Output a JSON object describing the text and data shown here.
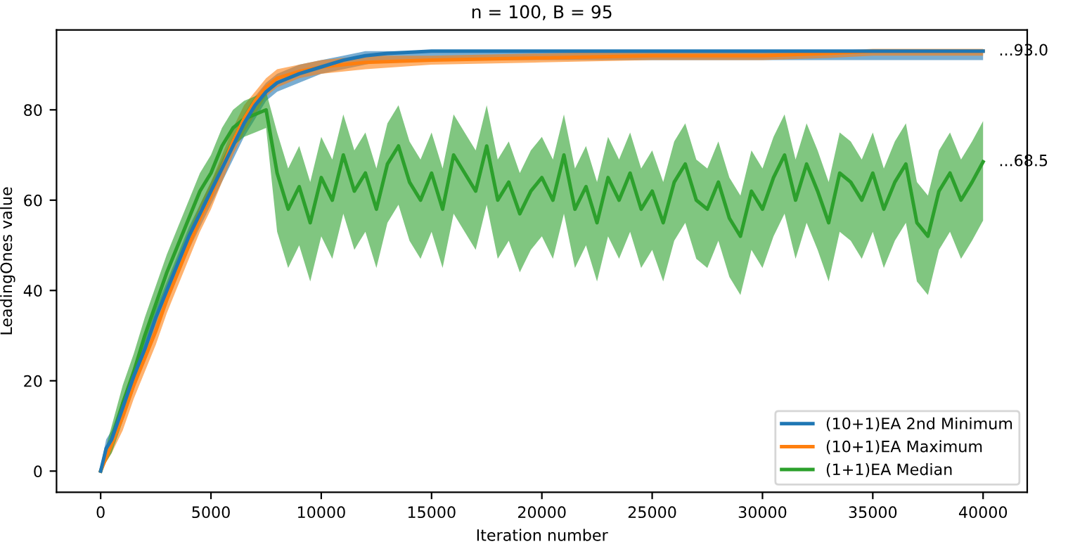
{
  "chart_data": {
    "type": "line",
    "title": "n = 100, B = 95",
    "xlabel": "Iteration number",
    "ylabel": "LeadingOnes value",
    "xlim": [
      -2000,
      42000
    ],
    "ylim": [
      -4.7,
      97.7
    ],
    "xticks": [
      0,
      5000,
      10000,
      15000,
      20000,
      25000,
      30000,
      35000,
      40000
    ],
    "yticks": [
      0,
      20,
      40,
      60,
      80
    ],
    "grid": false,
    "legend": "bottom right",
    "marker": "none",
    "line_style": "solid",
    "annotations": [
      {
        "text": "...93.0",
        "x": 40000,
        "y": 93
      },
      {
        "text": "...68.5",
        "x": 40000,
        "y": 68.5
      }
    ],
    "series": [
      {
        "name": "(10+1)EA 2nd Minimum",
        "color": "#1f77b4",
        "x": [
          0,
          250,
          500,
          1000,
          1500,
          2000,
          2500,
          3000,
          3500,
          4000,
          4500,
          5000,
          5500,
          6000,
          6500,
          7000,
          7500,
          8000,
          9000,
          10000,
          11000,
          12000,
          13000,
          15000,
          20000,
          25000,
          30000,
          35000,
          40000
        ],
        "values": [
          0,
          5,
          7,
          14,
          21,
          27,
          34,
          40,
          46,
          52,
          57,
          62,
          67,
          72,
          77,
          81,
          84,
          86,
          88,
          89.5,
          91,
          92,
          92.5,
          93,
          93,
          93,
          93,
          93,
          93
        ],
        "lower": [
          0,
          3,
          5,
          12,
          19,
          25,
          31,
          37,
          43,
          49,
          54,
          59,
          64,
          69,
          74,
          78,
          82,
          84,
          86,
          88,
          89,
          90,
          91,
          91,
          91,
          91,
          91,
          91,
          91
        ],
        "upper": [
          1,
          7,
          9,
          16,
          23,
          29,
          36,
          42,
          48,
          54,
          59,
          64,
          69,
          74,
          79,
          83,
          86,
          88,
          90,
          91,
          92,
          93,
          93,
          93,
          93,
          93,
          93,
          93,
          93
        ]
      },
      {
        "name": "(10+1)EA Maximum",
        "color": "#ff7f0e",
        "x": [
          0,
          500,
          1000,
          1500,
          2000,
          2500,
          3000,
          3500,
          4000,
          4500,
          5000,
          5500,
          6000,
          6500,
          7000,
          7500,
          8000,
          9000,
          10000,
          12000,
          15000,
          20000,
          25000,
          30000,
          33000,
          35000,
          40000
        ],
        "values": [
          0,
          6,
          12,
          19,
          25,
          31,
          38,
          44,
          50,
          56,
          61,
          67,
          73,
          78,
          82,
          85,
          87,
          88.5,
          89.5,
          90.5,
          91,
          91.5,
          92,
          92,
          92.5,
          93,
          93
        ],
        "lower": [
          0,
          4,
          9,
          16,
          22,
          28,
          35,
          41,
          47,
          53,
          58,
          64,
          70,
          75,
          79,
          83,
          85,
          87,
          88,
          89,
          90,
          90.5,
          91,
          91,
          91.5,
          92,
          92
        ],
        "upper": [
          1,
          8,
          15,
          22,
          28,
          34,
          41,
          47,
          53,
          59,
          64,
          70,
          76,
          81,
          84,
          87,
          89,
          90,
          91,
          92,
          92,
          92.5,
          93,
          93,
          93,
          93.5,
          93.5
        ]
      },
      {
        "name": "(1+1)EA Median",
        "color": "#2ca02c",
        "x": [
          0,
          500,
          1000,
          1500,
          2000,
          2500,
          3000,
          3500,
          4000,
          4500,
          5000,
          5500,
          6000,
          6500,
          7000,
          7500,
          8000,
          8500,
          9000,
          9500,
          10000,
          10500,
          11000,
          11500,
          12000,
          12500,
          13000,
          13500,
          14000,
          14500,
          15000,
          15500,
          16000,
          16500,
          17000,
          17500,
          18000,
          18500,
          19000,
          19500,
          20000,
          20500,
          21000,
          21500,
          22000,
          22500,
          23000,
          23500,
          24000,
          24500,
          25000,
          25500,
          26000,
          26500,
          27000,
          27500,
          28000,
          28500,
          29000,
          29500,
          30000,
          30500,
          31000,
          31500,
          32000,
          32500,
          33000,
          33500,
          34000,
          34500,
          35000,
          35500,
          36000,
          36500,
          37000,
          37500,
          38000,
          38500,
          39000,
          39500,
          40000
        ],
        "values": [
          0,
          7,
          15,
          22,
          30,
          37,
          44,
          50,
          56,
          62,
          66,
          72,
          76,
          78,
          79,
          80,
          66,
          58,
          63,
          55,
          65,
          60,
          70,
          62,
          66,
          58,
          68,
          72,
          64,
          60,
          66,
          58,
          70,
          66,
          62,
          72,
          60,
          64,
          57,
          62,
          65,
          60,
          70,
          58,
          63,
          55,
          65,
          60,
          66,
          58,
          62,
          55,
          64,
          68,
          60,
          58,
          64,
          56,
          52,
          62,
          58,
          65,
          70,
          60,
          68,
          62,
          55,
          66,
          64,
          60,
          66,
          58,
          64,
          68,
          55,
          52,
          62,
          66,
          60,
          64,
          68.5
        ],
        "lower": [
          0,
          4,
          11,
          18,
          26,
          33,
          40,
          46,
          52,
          58,
          62,
          68,
          72,
          74,
          75,
          76,
          53,
          45,
          50,
          42,
          52,
          47,
          57,
          49,
          53,
          45,
          55,
          59,
          51,
          47,
          53,
          45,
          57,
          53,
          49,
          59,
          47,
          51,
          44,
          49,
          52,
          47,
          57,
          45,
          50,
          42,
          52,
          47,
          53,
          45,
          49,
          42,
          51,
          55,
          47,
          45,
          51,
          43,
          39,
          49,
          45,
          52,
          57,
          47,
          55,
          49,
          42,
          53,
          51,
          47,
          53,
          45,
          51,
          55,
          42,
          39,
          49,
          53,
          47,
          51,
          55.5
        ],
        "upper": [
          1,
          10,
          19,
          26,
          34,
          41,
          48,
          54,
          60,
          66,
          70,
          76,
          80,
          82,
          83,
          84,
          75,
          67,
          72,
          64,
          74,
          69,
          79,
          71,
          75,
          67,
          77,
          81,
          73,
          69,
          75,
          67,
          79,
          75,
          71,
          81,
          69,
          73,
          66,
          71,
          74,
          69,
          79,
          67,
          72,
          64,
          74,
          69,
          75,
          67,
          71,
          64,
          73,
          77,
          69,
          67,
          73,
          65,
          61,
          71,
          67,
          74,
          79,
          69,
          77,
          71,
          64,
          75,
          73,
          69,
          75,
          67,
          73,
          77,
          64,
          61,
          71,
          75,
          69,
          73,
          77.5
        ]
      }
    ]
  }
}
